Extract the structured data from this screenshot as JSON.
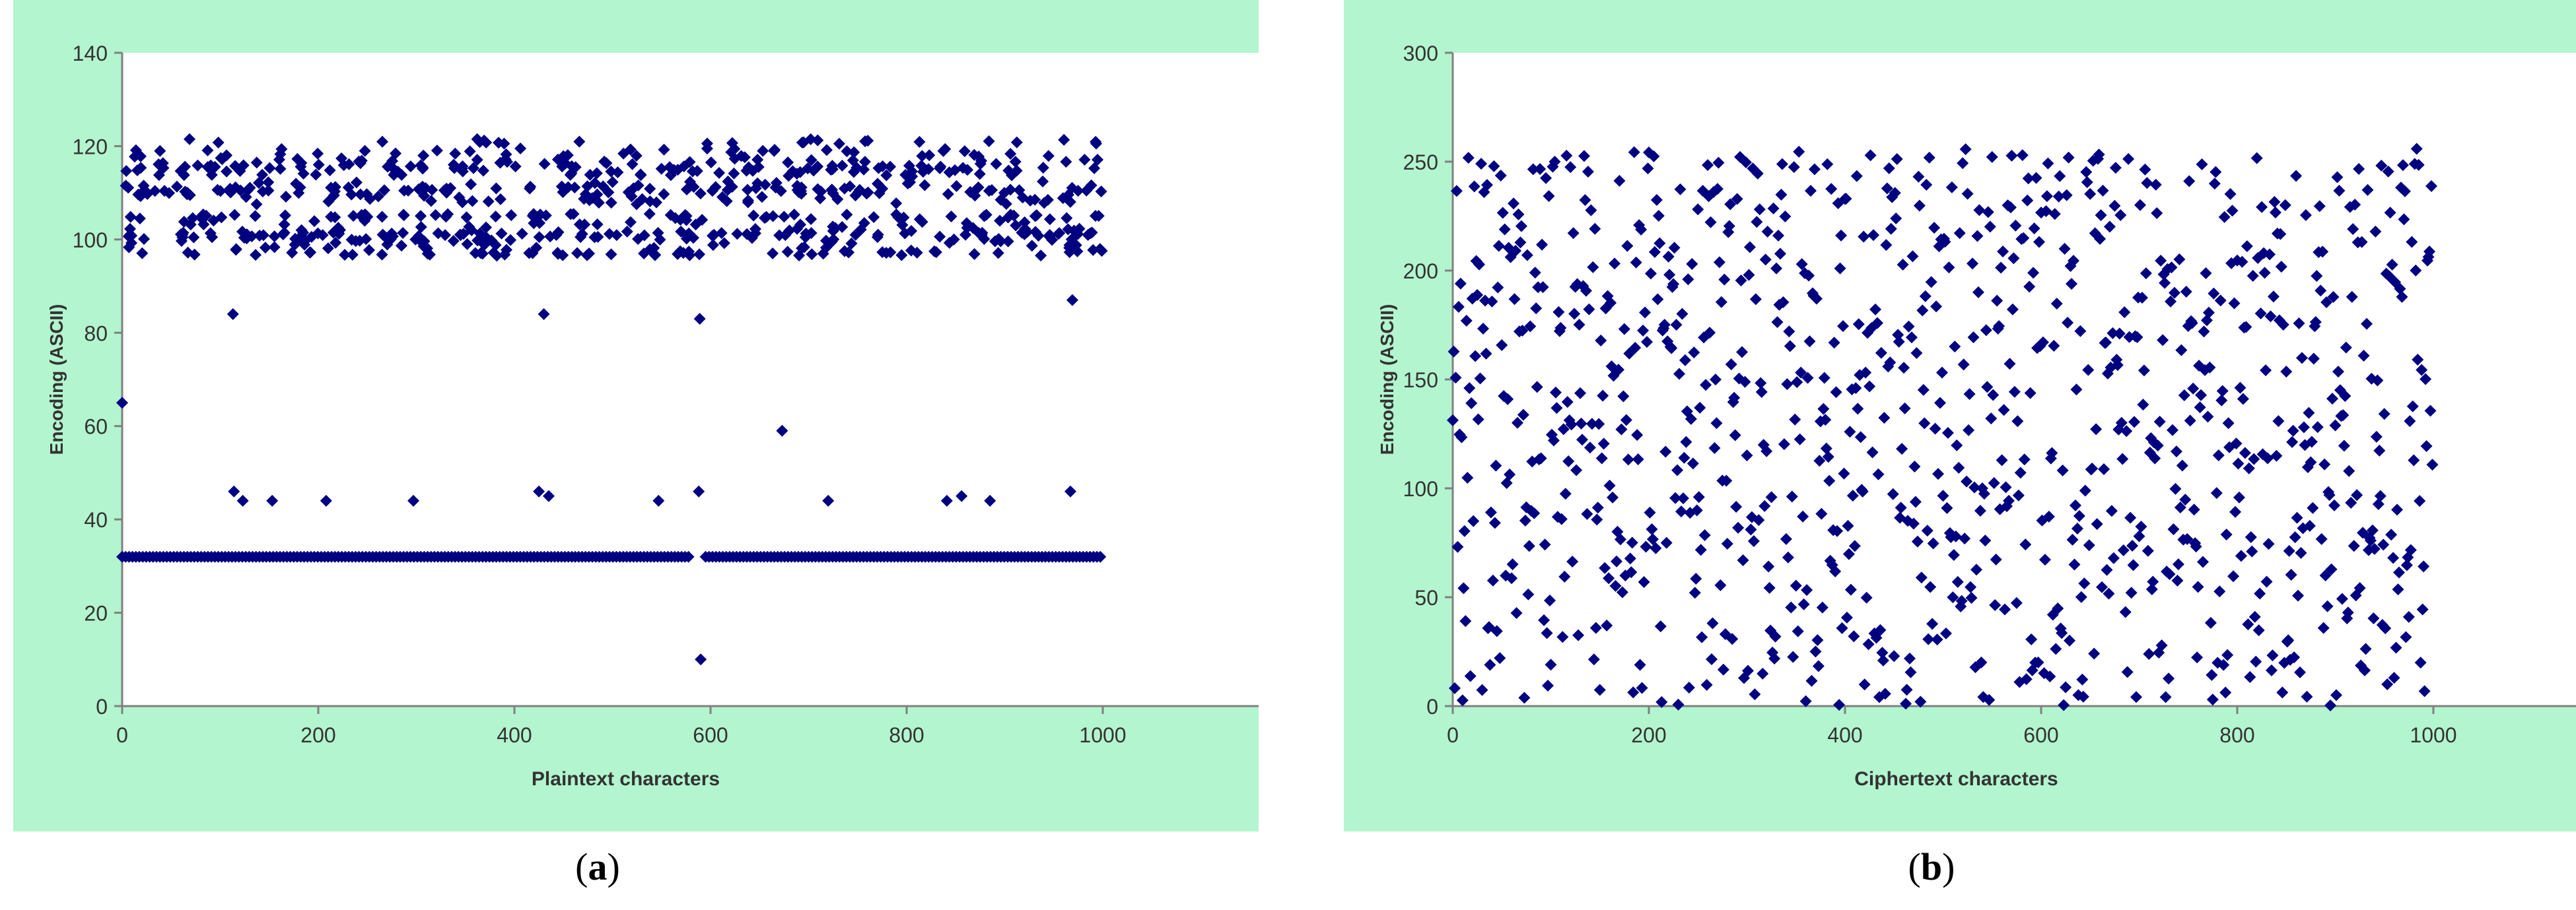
{
  "style": {
    "plot_area_bg": "#b3f5cf",
    "marker_color": "#000080",
    "axis_color": "#808080",
    "text_color": "#333333"
  },
  "captions": [
    {
      "open": "(",
      "letter": "a",
      "close": ")"
    },
    {
      "open": "(",
      "letter": "b",
      "close": ")"
    }
  ],
  "chart_data": [
    {
      "type": "scatter",
      "title": "",
      "xlabel": "Plaintext characters",
      "ylabel": "Encoding (ASCII)",
      "xlim": [
        0,
        1000
      ],
      "ylim": [
        0,
        140
      ],
      "xticks": [
        0,
        200,
        400,
        600,
        800,
        1000
      ],
      "yticks": [
        0,
        20,
        40,
        60,
        80,
        100,
        120,
        140
      ],
      "grid": false,
      "legend": "none",
      "marker": "diamond",
      "series": [
        {
          "description_note": "1000 plaintext ASCII codes; dense band 97-121 (lowercase), row at 32 (space), sparse capitals/punctuation",
          "points": [
            [
              0,
              65
            ],
            [
              113,
              84
            ],
            [
              430,
              84
            ],
            [
              589,
              83
            ],
            [
              969,
              87
            ],
            [
              673,
              59
            ],
            [
              114,
              46
            ],
            [
              123,
              44
            ],
            [
              153,
              44
            ],
            [
              208,
              44
            ],
            [
              297,
              44
            ],
            [
              425,
              46
            ],
            [
              435,
              45
            ],
            [
              547,
              44
            ],
            [
              588,
              46
            ],
            [
              720,
              44
            ],
            [
              841,
              44
            ],
            [
              856,
              45
            ],
            [
              885,
              44
            ],
            [
              967,
              46
            ],
            [
              590,
              10
            ]
          ],
          "space_row": {
            "y": 32,
            "x_range": [
              0,
              1000
            ],
            "gaps": [
              [
                578,
                595
              ]
            ]
          },
          "letter_band": {
            "y_range": [
              97,
              121
            ],
            "x_range": [
              0,
              1000
            ],
            "count": 720
          }
        }
      ]
    },
    {
      "type": "scatter",
      "title": "",
      "xlabel": "Ciphertext characters",
      "ylabel": "Encoding (ASCII)",
      "xlim": [
        0,
        1000
      ],
      "ylim": [
        0,
        300
      ],
      "xticks": [
        0,
        200,
        400,
        600,
        800,
        1000
      ],
      "yticks": [
        0,
        50,
        100,
        150,
        200,
        250,
        300
      ],
      "grid": false,
      "legend": "none",
      "marker": "diamond",
      "series": [
        {
          "description_note": "1000 ciphertext codes uniformly distributed between 0 and 255",
          "uniform": {
            "y_range": [
              0,
              256
            ],
            "x_range": [
              0,
              1000
            ],
            "count": 1000
          }
        }
      ]
    }
  ]
}
